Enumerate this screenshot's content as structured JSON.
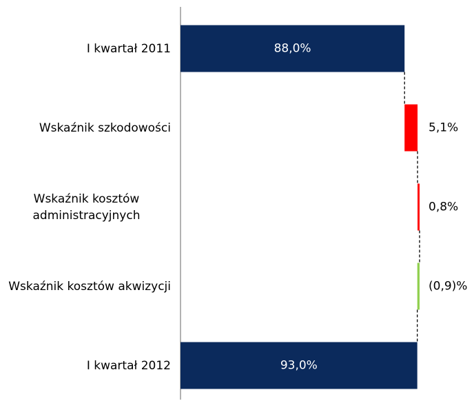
{
  "chart_data": {
    "type": "waterfall",
    "categories": [
      "I kwartał 2011",
      "Wskaźnik szkodowości",
      "Wskaźnik kosztów administracyjnych",
      "Wskaźnik kosztów akwizycji",
      "I kwartał 2012"
    ],
    "values": [
      88.0,
      5.1,
      0.8,
      -0.9,
      93.0
    ],
    "value_labels": [
      "88,0%",
      "5,1%",
      "0,8%",
      "(0,9)%",
      "93,0%"
    ],
    "totals": [
      true,
      false,
      false,
      false,
      true
    ],
    "colors": [
      "#0b2a5c",
      "#ff0000",
      "#ff0000",
      "#92d050",
      "#0b2a5c"
    ]
  }
}
